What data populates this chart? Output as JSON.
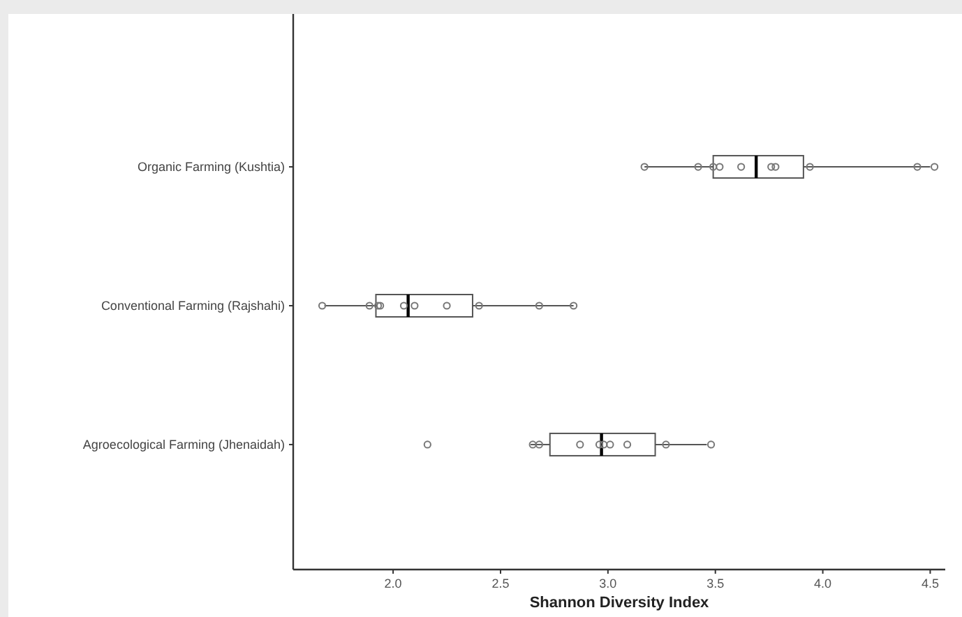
{
  "chart_data": {
    "type": "box",
    "orientation": "horizontal",
    "xlabel": "Shannon Diversity Index",
    "categories": [
      "Organic Farming (Kushtia)",
      "Conventional Farming (Rajshahi)",
      "Agroecological Farming (Jhenaidah)"
    ],
    "xlim": [
      1.535,
      4.57
    ],
    "xticks": [
      {
        "value": 2,
        "label": "2.0"
      },
      {
        "value": 2.5,
        "label": "2.5"
      },
      {
        "value": 3,
        "label": "3.0"
      },
      {
        "value": 3.5,
        "label": "3.5"
      },
      {
        "value": 4,
        "label": "4.0"
      },
      {
        "value": 4.5,
        "label": "4.5"
      }
    ],
    "boxes": [
      {
        "low": 3.17,
        "q1": 3.49,
        "median": 3.69,
        "q3": 3.91,
        "high": 4.5
      },
      {
        "low": 1.68,
        "q1": 1.92,
        "median": 2.07,
        "q3": 2.37,
        "high": 2.84
      },
      {
        "low": 2.64,
        "q1": 2.73,
        "median": 2.97,
        "q3": 3.22,
        "high": 3.46
      }
    ],
    "color": "#555555",
    "grid": false,
    "series": [
      {
        "type": "scatter",
        "color": "#777777",
        "marker": "circle",
        "x": [
          "Organic Farming (Kushtia)",
          "Organic Farming (Kushtia)",
          "Organic Farming (Kushtia)",
          "Organic Farming (Kushtia)",
          "Organic Farming (Kushtia)",
          "Organic Farming (Kushtia)",
          "Organic Farming (Kushtia)",
          "Organic Farming (Kushtia)",
          "Organic Farming (Kushtia)",
          "Organic Farming (Kushtia)",
          "Conventional Farming (Rajshahi)",
          "Conventional Farming (Rajshahi)",
          "Conventional Farming (Rajshahi)",
          "Conventional Farming (Rajshahi)",
          "Conventional Farming (Rajshahi)",
          "Conventional Farming (Rajshahi)",
          "Conventional Farming (Rajshahi)",
          "Conventional Farming (Rajshahi)",
          "Conventional Farming (Rajshahi)",
          "Conventional Farming (Rajshahi)",
          "Agroecological Farming (Jhenaidah)",
          "Agroecological Farming (Jhenaidah)",
          "Agroecological Farming (Jhenaidah)",
          "Agroecological Farming (Jhenaidah)",
          "Agroecological Farming (Jhenaidah)",
          "Agroecological Farming (Jhenaidah)",
          "Agroecological Farming (Jhenaidah)",
          "Agroecological Farming (Jhenaidah)",
          "Agroecological Farming (Jhenaidah)",
          "Agroecological Farming (Jhenaidah)"
        ],
        "values": [
          3.17,
          3.42,
          3.49,
          3.52,
          3.62,
          3.76,
          3.78,
          3.94,
          4.44,
          4.52,
          1.67,
          1.89,
          1.93,
          1.94,
          2.05,
          2.1,
          2.25,
          2.4,
          2.68,
          2.84,
          2.16,
          2.65,
          2.68,
          2.87,
          2.96,
          2.98,
          3.01,
          3.09,
          3.27,
          3.48
        ]
      }
    ]
  }
}
